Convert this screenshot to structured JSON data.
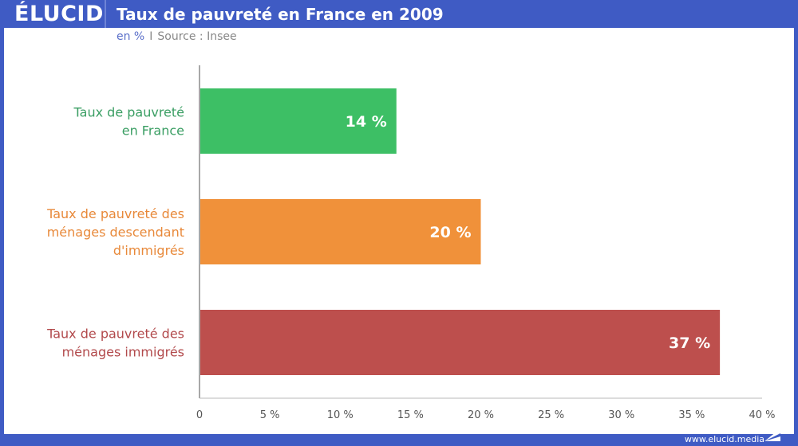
{
  "header": {
    "logo": "ÉLUCID",
    "title": "Taux de pauvreté en France en 2009"
  },
  "subtitle": {
    "unit": "en %",
    "separator": "I",
    "source": "Source : Insee"
  },
  "footer": {
    "url": "www.elucid.media"
  },
  "colors": {
    "frame": "#3f5bc4",
    "green": "#3dbf65",
    "orange": "#f0913a",
    "red": "#bd4f4d"
  },
  "chart_data": {
    "type": "bar",
    "orientation": "horizontal",
    "title": "Taux de pauvreté en France en 2009",
    "xlabel": "",
    "ylabel": "",
    "xlim": [
      0,
      40
    ],
    "grid": false,
    "categories": [
      [
        "Taux de pauvreté",
        "en France"
      ],
      [
        "Taux de pauvreté des",
        "ménages descendant",
        "d'immigrés"
      ],
      [
        "Taux de pauvreté des",
        "ménages immigrés"
      ]
    ],
    "values": [
      14,
      20,
      37
    ],
    "value_labels": [
      "14 %",
      "20 %",
      "37 %"
    ],
    "bar_colors": [
      "#3dbf65",
      "#f0913a",
      "#bd4f4d"
    ],
    "label_colors": [
      "#3a9e63",
      "#e8893a",
      "#b24a4c"
    ],
    "ticks": [
      0,
      5,
      10,
      15,
      20,
      25,
      30,
      35,
      40
    ],
    "tick_labels": [
      "0",
      "5 %",
      "10 %",
      "15 %",
      "20 %",
      "25 %",
      "30 %",
      "35 %",
      "40 %"
    ]
  }
}
